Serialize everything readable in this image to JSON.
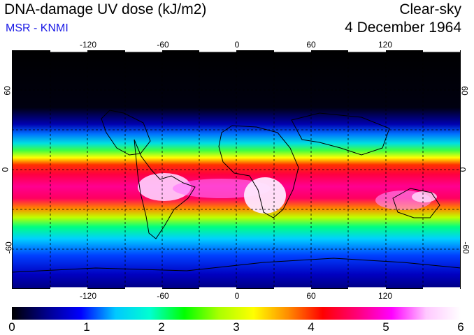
{
  "header": {
    "title": "DNA-damage UV dose (kJ/m2)",
    "source": "MSR - KNMI",
    "condition": "Clear-sky",
    "date": "4 December 1964"
  },
  "axes": {
    "lon_ticks": [
      "-120",
      "-60",
      "0",
      "60",
      "120"
    ],
    "lat_ticks_left": [
      "60",
      "0",
      "-60"
    ],
    "lat_ticks_right": [
      "60",
      "0",
      "-60"
    ]
  },
  "colorbar": {
    "labels": [
      "0",
      "1",
      "2",
      "3",
      "4",
      "5",
      "6"
    ],
    "stops": [
      "#000000",
      "#00008b",
      "#0000ff",
      "#00c8ff",
      "#00ffd0",
      "#00ff00",
      "#aaff00",
      "#ffff00",
      "#ff8c00",
      "#ff0000",
      "#ff0078",
      "#ff00ff",
      "#ffc8ff",
      "#ffffff"
    ]
  }
}
